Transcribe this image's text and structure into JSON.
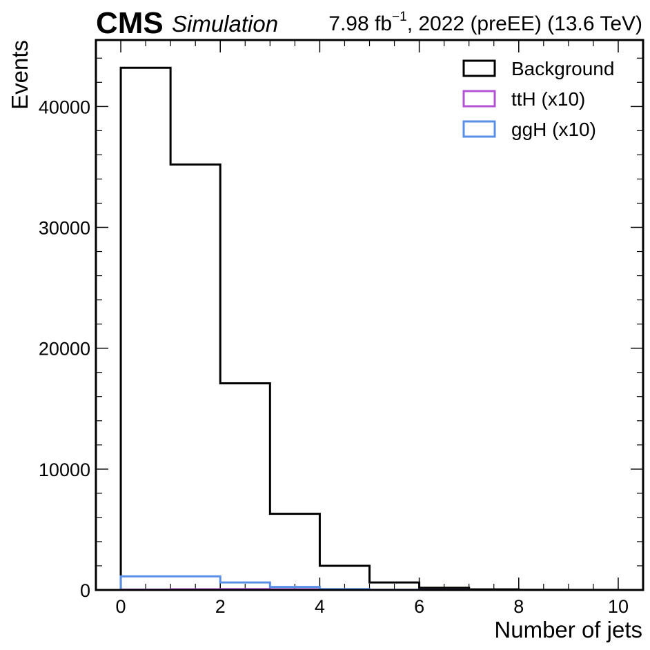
{
  "header": {
    "experiment": "CMS",
    "label": "Simulation",
    "lumi_prefix": "7.98 fb",
    "lumi_exponent": "−1",
    "lumi_suffix": ", 2022 (preEE) (13.6 TeV)"
  },
  "chart_data": {
    "type": "histogram",
    "xlabel": "Number of jets",
    "ylabel": "Events",
    "xlim": [
      -0.5,
      10.5
    ],
    "ylim": [
      0,
      45500
    ],
    "x_ticks": [
      0,
      2,
      4,
      6,
      8,
      10
    ],
    "y_ticks": [
      0,
      10000,
      20000,
      30000,
      40000
    ],
    "bin_edges": [
      0,
      1,
      2,
      3,
      4,
      5,
      6,
      7,
      8,
      9,
      10
    ],
    "legend_position": "top-right",
    "series": [
      {
        "name": "Background",
        "color": "#000000",
        "values": [
          43200,
          35200,
          17100,
          6300,
          2000,
          620,
          180,
          50,
          15,
          5
        ]
      },
      {
        "name": "ttH (x10)",
        "color": "#b553d6",
        "values": [
          25,
          55,
          70,
          55,
          30,
          12,
          5,
          2,
          1,
          0
        ]
      },
      {
        "name": "ggH (x10)",
        "color": "#5a8fe8",
        "values": [
          1130,
          1130,
          620,
          250,
          70,
          15,
          4,
          1,
          0,
          0
        ]
      }
    ]
  }
}
